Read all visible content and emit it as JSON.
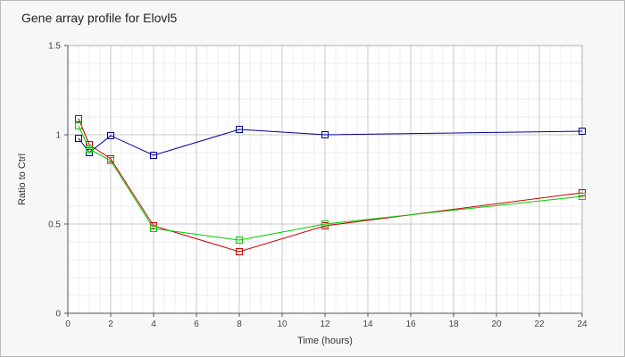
{
  "chart_data": {
    "type": "line",
    "title": "Gene array profile for Elovl5",
    "xlabel": "Time (hours)",
    "ylabel": "Ratio to Ctrl",
    "xlim": [
      0,
      24
    ],
    "ylim": [
      0,
      1.5
    ],
    "xticks": [
      0,
      2,
      4,
      6,
      8,
      10,
      12,
      14,
      16,
      18,
      20,
      22,
      24
    ],
    "xtick_labels": [
      "0",
      "2",
      "4",
      "6",
      "8",
      "10",
      "12",
      "14",
      "16",
      "18",
      "20",
      "22",
      "24"
    ],
    "yticks": [
      0,
      0.5,
      1,
      1.5
    ],
    "ytick_labels": [
      "0",
      "0.5",
      "1",
      "1.5"
    ],
    "grid": true,
    "marker": "square",
    "x": [
      0.5,
      1,
      2,
      4,
      8,
      12,
      24
    ],
    "series": [
      {
        "color": "#000099",
        "values": [
          0.98,
          0.9,
          0.995,
          0.885,
          1.03,
          1.0,
          1.02
        ]
      },
      {
        "color": "#cc0000",
        "values": [
          1.09,
          0.945,
          0.865,
          0.49,
          0.345,
          0.49,
          0.675
        ]
      },
      {
        "color": "#00cc00",
        "values": [
          1.05,
          0.92,
          0.855,
          0.475,
          0.41,
          0.5,
          0.655
        ]
      }
    ]
  }
}
